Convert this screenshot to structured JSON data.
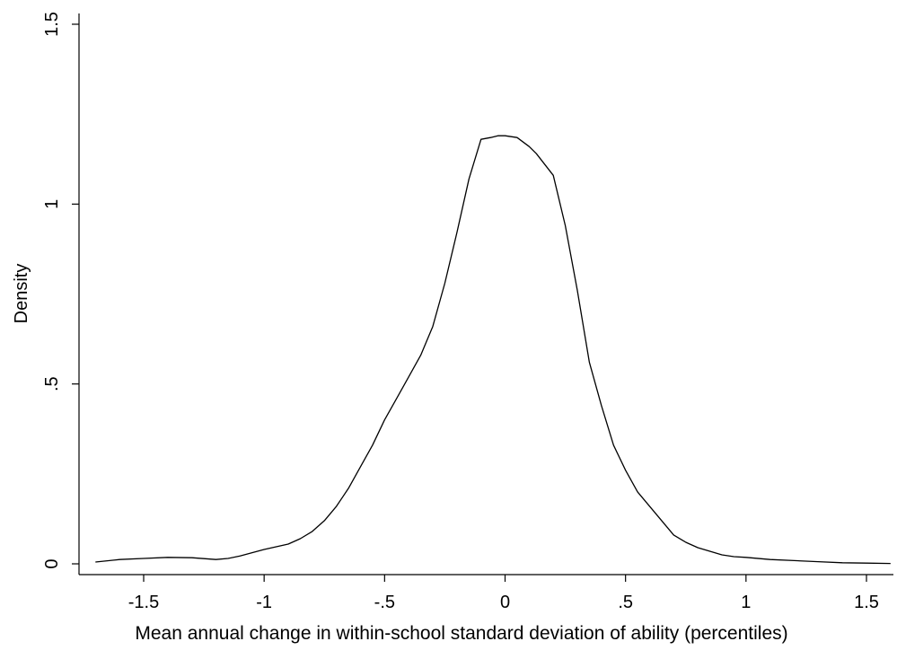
{
  "chart_data": {
    "type": "line",
    "title": "",
    "xlabel": "Mean annual change in within-school standard deviation of ability (percentiles)",
    "ylabel": "Density",
    "xlim": [
      -1.7,
      1.62
    ],
    "ylim": [
      0,
      1.5
    ],
    "xticks": [
      {
        "value": -1.5,
        "label": "-1.5"
      },
      {
        "value": -1,
        "label": "-1"
      },
      {
        "value": -0.5,
        "label": "-.5"
      },
      {
        "value": 0,
        "label": "0"
      },
      {
        "value": 0.5,
        "label": ".5"
      },
      {
        "value": 1,
        "label": "1"
      },
      {
        "value": 1.5,
        "label": "1.5"
      }
    ],
    "yticks": [
      {
        "value": 0,
        "label": "0"
      },
      {
        "value": 0.5,
        "label": ".5"
      },
      {
        "value": 1,
        "label": "1"
      },
      {
        "value": 1.5,
        "label": "1.5"
      }
    ],
    "grid": false,
    "legend": "none",
    "colors": {
      "line": "#000000",
      "axis": "#000000",
      "background": "#ffffff"
    },
    "series": [
      {
        "x": [
          -1.7,
          -1.6,
          -1.5,
          -1.4,
          -1.3,
          -1.2,
          -1.15,
          -1.1,
          -1.0,
          -0.9,
          -0.85,
          -0.8,
          -0.75,
          -0.7,
          -0.65,
          -0.6,
          -0.55,
          -0.5,
          -0.45,
          -0.4,
          -0.35,
          -0.3,
          -0.25,
          -0.2,
          -0.15,
          -0.1,
          -0.06,
          -0.03,
          0.0,
          0.05,
          0.1,
          0.13,
          0.2,
          0.25,
          0.3,
          0.35,
          0.4,
          0.45,
          0.5,
          0.55,
          0.6,
          0.65,
          0.7,
          0.75,
          0.8,
          0.85,
          0.9,
          0.95,
          1.0,
          1.1,
          1.2,
          1.3,
          1.4,
          1.5,
          1.6
        ],
        "y": [
          0.005,
          0.012,
          0.015,
          0.018,
          0.017,
          0.012,
          0.015,
          0.022,
          0.04,
          0.055,
          0.07,
          0.09,
          0.12,
          0.16,
          0.21,
          0.27,
          0.33,
          0.4,
          0.46,
          0.52,
          0.58,
          0.66,
          0.78,
          0.92,
          1.07,
          1.18,
          1.185,
          1.19,
          1.19,
          1.185,
          1.16,
          1.14,
          1.08,
          0.94,
          0.76,
          0.56,
          0.44,
          0.33,
          0.26,
          0.2,
          0.16,
          0.12,
          0.08,
          0.06,
          0.045,
          0.035,
          0.025,
          0.02,
          0.018,
          0.012,
          0.009,
          0.006,
          0.003,
          0.002,
          0.001
        ]
      }
    ]
  }
}
